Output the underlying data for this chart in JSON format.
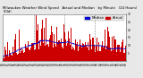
{
  "title": "Milwaukee Weather Wind Speed   Actual and Median   by Minute   (24 Hours) (Old)",
  "n_points": 1440,
  "seed": 42,
  "background_color": "#e8e8e8",
  "plot_bg_color": "#ffffff",
  "bar_color": "#cc0000",
  "median_color": "#0000cc",
  "ylim": [
    0,
    30
  ],
  "ylabel_ticks": [
    5,
    10,
    15,
    20,
    25,
    30
  ],
  "title_fontsize": 2.8,
  "tick_fontsize": 2.2,
  "legend_fontsize": 2.8,
  "dpi": 100,
  "figsize": [
    1.6,
    0.87
  ]
}
